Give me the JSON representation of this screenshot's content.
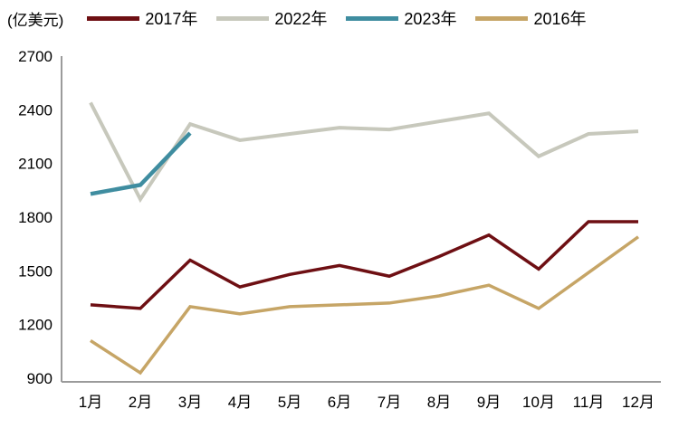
{
  "unit_label": "(亿美元)",
  "chart_data": {
    "type": "line",
    "title": "",
    "xlabel": "",
    "ylabel": "(亿美元)",
    "categories": [
      "1月",
      "2月",
      "3月",
      "4月",
      "5月",
      "6月",
      "7月",
      "8月",
      "9月",
      "10月",
      "11月",
      "12月"
    ],
    "series": [
      {
        "name": "2017年",
        "color": "#6E0F13",
        "width": 3.5,
        "values": [
          1310,
          1290,
          1560,
          1410,
          1480,
          1530,
          1470,
          1580,
          1700,
          1510,
          1775,
          1775
        ]
      },
      {
        "name": "2022年",
        "color": "#C7C8BC",
        "width": 4,
        "values": [
          2440,
          1900,
          2320,
          2230,
          2265,
          2300,
          2290,
          2335,
          2380,
          2140,
          2265,
          2280
        ]
      },
      {
        "name": "2023年",
        "color": "#3F8DA0",
        "width": 4.5,
        "values": [
          1930,
          1980,
          2270,
          null,
          null,
          null,
          null,
          null,
          null,
          null,
          null,
          null
        ]
      },
      {
        "name": "2016年",
        "color": "#C6A566",
        "width": 3.5,
        "values": [
          1110,
          930,
          1300,
          1260,
          1300,
          1310,
          1320,
          1360,
          1420,
          1290,
          1490,
          1690
        ]
      }
    ],
    "ylim": [
      900,
      2700
    ],
    "yticks": [
      900,
      1200,
      1500,
      1800,
      2100,
      2400,
      2700
    ],
    "grid": false,
    "legend_position": "top",
    "axis_color": "#9B9B9B",
    "text_color": "#000000"
  }
}
